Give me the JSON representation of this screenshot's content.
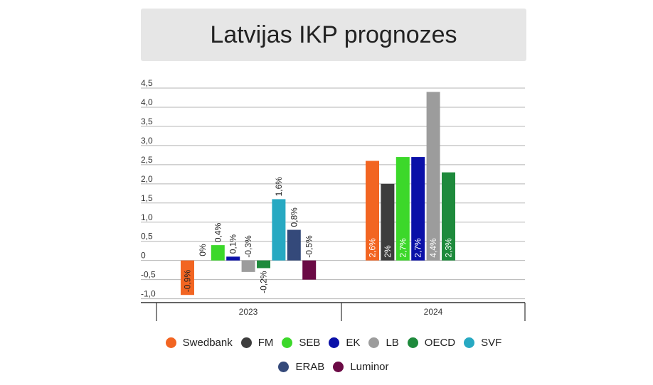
{
  "header": {
    "title": "Latvijas IKP prognozes"
  },
  "chart_data": {
    "type": "bar",
    "title": "Latvijas IKP prognozes",
    "xlabel": "",
    "ylabel": "",
    "ylim": [
      -1.0,
      4.5
    ],
    "yticks": [
      "4,5",
      "4,0",
      "3,5",
      "3,0",
      "2,5",
      "2,0",
      "1,5",
      "1,0",
      "0,5",
      "0",
      "-0,5",
      "-1,0"
    ],
    "ytick_values": [
      4.5,
      4.0,
      3.5,
      3.0,
      2.5,
      2.0,
      1.5,
      1.0,
      0.5,
      0,
      -0.5,
      -1.0
    ],
    "grid": true,
    "legend_position": "bottom",
    "categories": [
      "2023",
      "2024"
    ],
    "series": [
      {
        "name": "Swedbank",
        "color": "#f26522",
        "values": [
          -0.9,
          2.6
        ],
        "labels": [
          "-0,9%",
          "2,6%"
        ]
      },
      {
        "name": "FM",
        "color": "#3d3d3d",
        "values": [
          0,
          2
        ],
        "labels": [
          "0%",
          "2%"
        ]
      },
      {
        "name": "SEB",
        "color": "#3cd82a",
        "values": [
          0.4,
          2.7
        ],
        "labels": [
          "0,4%",
          "2,7%"
        ]
      },
      {
        "name": "EK",
        "color": "#0a10a8",
        "values": [
          0.1,
          2.7
        ],
        "labels": [
          "0,1%",
          "2,7%"
        ]
      },
      {
        "name": "LB",
        "color": "#9c9c9c",
        "values": [
          -0.3,
          4.4
        ],
        "labels": [
          "-0,3%",
          "4,4%"
        ]
      },
      {
        "name": "OECD",
        "color": "#1e8a3c",
        "values": [
          -0.2,
          2.3
        ],
        "labels": [
          "-0,2%",
          "2,3%"
        ]
      },
      {
        "name": "SVF",
        "color": "#27a9c2",
        "values": [
          1.6,
          null
        ],
        "labels": [
          "1,6%",
          ""
        ]
      },
      {
        "name": "ERAB",
        "color": "#34497a",
        "values": [
          0.8,
          null
        ],
        "labels": [
          "0,8%",
          ""
        ]
      },
      {
        "name": "Luminor",
        "color": "#6b0a45",
        "values": [
          -0.5,
          null
        ],
        "labels": [
          "-0,5%",
          ""
        ]
      }
    ]
  }
}
